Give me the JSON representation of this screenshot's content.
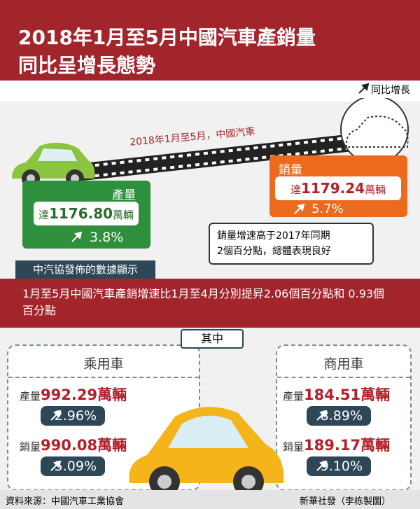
{
  "header": {
    "title_lines": [
      "2018年1月至5月中國汽車產銷量",
      "同比呈增長態勢"
    ],
    "legend": "同比增長"
  },
  "road_label": "2018年1月至5月，中國汽車",
  "production": {
    "label": "產量",
    "prefix": "達",
    "value": "1176.80",
    "unit": "萬輛",
    "growth": "3.8%"
  },
  "sales": {
    "label": "銷量",
    "prefix": "達",
    "value": "1179.24",
    "unit": "萬輛",
    "growth": "5.7%"
  },
  "callout": [
    "銷量增速高于2017年同期",
    "2個百分點，總體表現良好"
  ],
  "source_tag": "中汽協發佈的數據顯示",
  "banner": "1月至5月中國汽車產銷增速比1月至4月分別提昇2.06個百分點和 0.93個百分點",
  "section": "其中",
  "passenger": {
    "title": "乘用車",
    "production_label": "產量",
    "production": "992.29萬輛",
    "production_growth": "2.96%",
    "sales_label": "銷量",
    "sales": "990.08萬輛",
    "sales_growth": "5.09%"
  },
  "commercial": {
    "title": "商用車",
    "production_label": "產量",
    "production": "184.51萬輛",
    "production_growth": "8.89%",
    "sales_label": "銷量",
    "sales": "189.17萬輛",
    "sales_growth": "9.10%"
  },
  "footer": {
    "source": "資料來源：中國汽車工業協會",
    "credit": "新華社發（李栋製圖）"
  }
}
